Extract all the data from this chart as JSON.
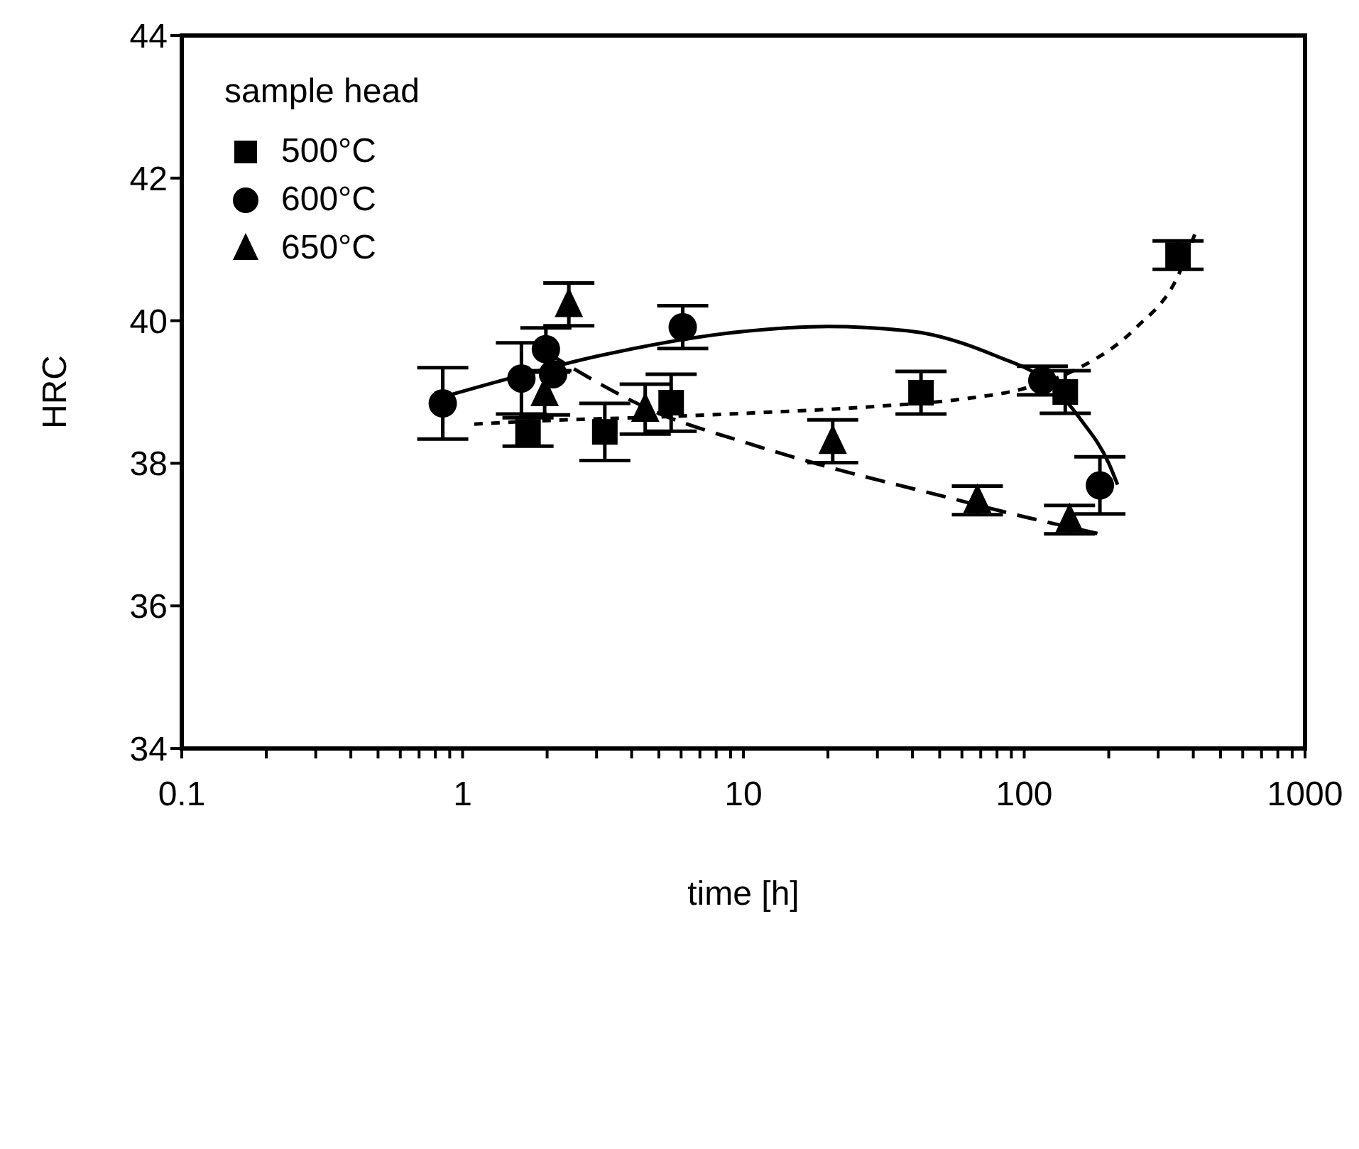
{
  "chart_data": {
    "type": "scatter",
    "xlabel": "time [h]",
    "ylabel": "HRC",
    "legend_title": "sample head",
    "legend": "top left",
    "log": "x",
    "grid": false,
    "xlim": [
      0.1,
      1000
    ],
    "ylim": [
      34,
      44
    ],
    "yticks": [
      34,
      36,
      38,
      40,
      42,
      44
    ],
    "xticks": [
      0.1,
      {
        "value": 0.2,
        "label": null
      },
      {
        "value": 0.3,
        "label": null
      },
      {
        "value": 0.4,
        "label": null
      },
      {
        "value": 0.5,
        "label": null
      },
      {
        "value": 0.6,
        "label": null
      },
      {
        "value": 0.7,
        "label": null
      },
      {
        "value": 0.8,
        "label": null
      },
      {
        "value": 0.9,
        "label": null
      },
      1,
      {
        "value": 2,
        "label": null
      },
      {
        "value": 3,
        "label": null
      },
      {
        "value": 4,
        "label": null
      },
      {
        "value": 5,
        "label": null
      },
      {
        "value": 6,
        "label": null
      },
      {
        "value": 7,
        "label": null
      },
      {
        "value": 8,
        "label": null
      },
      {
        "value": 9,
        "label": null
      },
      10,
      {
        "value": 20,
        "label": null
      },
      {
        "value": 30,
        "label": null
      },
      {
        "value": 40,
        "label": null
      },
      {
        "value": 50,
        "label": null
      },
      {
        "value": 60,
        "label": null
      },
      {
        "value": 70,
        "label": null
      },
      {
        "value": 80,
        "label": null
      },
      {
        "value": 90,
        "label": null
      },
      100,
      {
        "value": 200,
        "label": null
      },
      {
        "value": 300,
        "label": null
      },
      {
        "value": 400,
        "label": null
      },
      {
        "value": 500,
        "label": null
      },
      {
        "value": 600,
        "label": null
      },
      {
        "value": 700,
        "label": null
      },
      {
        "value": 800,
        "label": null
      },
      {
        "value": 900,
        "label": null
      },
      1000
    ],
    "series": [
      {
        "name": "500°C",
        "marker": "square",
        "color": "#000000",
        "x": [
          1.71,
          3.21,
          5.53,
          42.9,
          140,
          353
        ],
        "values": [
          38.44,
          38.44,
          38.85,
          38.99,
          39.0,
          40.92
        ],
        "errors": [
          0.2,
          0.4,
          0.4,
          0.3,
          0.3,
          0.2
        ]
      },
      {
        "name": "600°C",
        "marker": "circle",
        "color": "#000000",
        "x": [
          0.85,
          1.62,
          1.98,
          2.1,
          6.08,
          116,
          186
        ],
        "values": [
          38.84,
          39.19,
          39.6,
          39.25,
          39.91,
          39.16,
          37.69
        ],
        "errors": [
          0.5,
          0.5,
          0.3,
          null,
          0.3,
          0.2,
          0.4
        ]
      },
      {
        "name": "650°C",
        "marker": "triangle",
        "color": "#000000",
        "x": [
          1.96,
          2.39,
          4.47,
          20.8,
          68.1,
          145
        ],
        "values": [
          38.98,
          40.23,
          38.76,
          38.31,
          37.48,
          37.21
        ],
        "errors": [
          0.3,
          0.3,
          0.35,
          0.3,
          0.2,
          0.2
        ]
      },
      {
        "type": "line",
        "marker": "none",
        "line_style": "dotted",
        "color": "#000000",
        "x": [
          1.1,
          2,
          5,
          10,
          30,
          60,
          100,
          150,
          250,
          350,
          411
        ],
        "values": [
          38.55,
          38.6,
          38.65,
          38.7,
          38.8,
          38.9,
          39.05,
          39.3,
          39.9,
          40.6,
          41.28
        ]
      },
      {
        "type": "line",
        "marker": "none",
        "line_style": "solid",
        "color": "#000000",
        "x": [
          0.8,
          1.5,
          3,
          10,
          20,
          40,
          80,
          120,
          160,
          200,
          215
        ],
        "values": [
          38.9,
          39.2,
          39.5,
          39.85,
          39.92,
          39.85,
          39.5,
          39.15,
          38.6,
          38.0,
          37.7
        ]
      },
      {
        "type": "line",
        "marker": "none",
        "line_style": "dashed",
        "color": "#000000",
        "x": [
          2,
          5,
          10,
          20,
          50,
          100,
          190
        ],
        "values": [
          39.55,
          38.7,
          38.3,
          37.95,
          37.55,
          37.25,
          37.0
        ]
      }
    ]
  }
}
